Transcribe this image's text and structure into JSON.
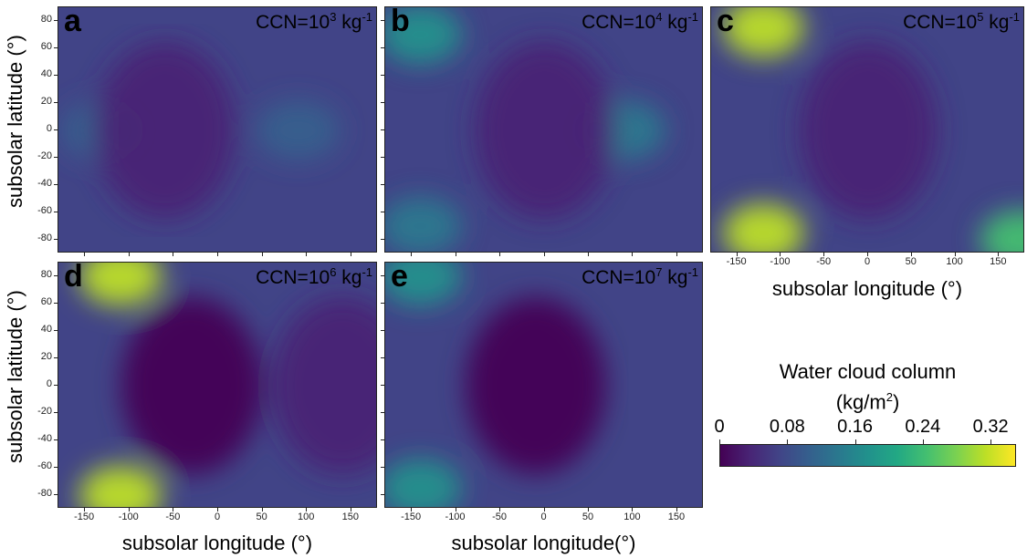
{
  "chart_data": {
    "type": "heatmap",
    "colorbar": {
      "title_line1": "Water cloud column",
      "title_line2_base": "(kg/m",
      "title_line2_sup": "2",
      "title_line2_end": ")",
      "ticks": [
        "0",
        "0.08",
        "0.16",
        "0.24",
        "0.32"
      ],
      "range": [
        0,
        0.35
      ],
      "colormap": "viridis"
    },
    "x_ticks": [
      -150,
      -100,
      -50,
      0,
      50,
      100,
      150
    ],
    "y_ticks": [
      80,
      60,
      40,
      20,
      0,
      -20,
      -40,
      -60,
      -80
    ],
    "xlim": [
      -180,
      180
    ],
    "ylim": [
      -90,
      90
    ],
    "ylabel": "subsolar latitude (°)",
    "panels": [
      {
        "letter": "a",
        "ccn_base": "CCN=10",
        "ccn_exp": "3",
        "ccn_unit": " kg",
        "ccn_unit_exp": "-1",
        "xlabel": "subsolar longitude (°)",
        "blobs": [
          {
            "lon": -130,
            "lat": 0,
            "value": 0.1
          },
          {
            "lon": 90,
            "lat": 0,
            "value": 0.12
          },
          {
            "lon": -60,
            "lat": 0,
            "value": 0.03
          }
        ]
      },
      {
        "letter": "b",
        "ccn_base": "CCN=10",
        "ccn_exp": "4",
        "ccn_unit": " kg",
        "ccn_unit_exp": "-1",
        "xlabel": "",
        "blobs": [
          {
            "lon": -140,
            "lat": 70,
            "value": 0.16
          },
          {
            "lon": -140,
            "lat": -70,
            "value": 0.15
          },
          {
            "lon": 90,
            "lat": 0,
            "value": 0.13
          },
          {
            "lon": 0,
            "lat": 0,
            "value": 0.03
          }
        ]
      },
      {
        "letter": "c",
        "ccn_base": "CCN=10",
        "ccn_exp": "5",
        "ccn_unit": " kg",
        "ccn_unit_exp": "-1",
        "xlabel": "subsolar longitude (°)",
        "blobs": [
          {
            "lon": -120,
            "lat": 75,
            "value": 0.33
          },
          {
            "lon": -120,
            "lat": -75,
            "value": 0.33
          },
          {
            "lon": 175,
            "lat": -80,
            "value": 0.25
          },
          {
            "lon": 0,
            "lat": 0,
            "value": 0.02
          }
        ]
      },
      {
        "letter": "d",
        "ccn_base": "CCN=10",
        "ccn_exp": "6",
        "ccn_unit": " kg",
        "ccn_unit_exp": "-1",
        "xlabel": "subsolar longitude (°)",
        "blobs": [
          {
            "lon": -110,
            "lat": 80,
            "value": 0.33
          },
          {
            "lon": -110,
            "lat": -80,
            "value": 0.33
          },
          {
            "lon": -30,
            "lat": 0,
            "value": 0.01
          },
          {
            "lon": 140,
            "lat": 0,
            "value": 0.02
          }
        ]
      },
      {
        "letter": "e",
        "ccn_base": "CCN=10",
        "ccn_exp": "7",
        "ccn_unit": " kg",
        "ccn_unit_exp": "-1",
        "xlabel": "subsolar longitude(°)",
        "blobs": [
          {
            "lon": -140,
            "lat": 80,
            "value": 0.17
          },
          {
            "lon": -140,
            "lat": -75,
            "value": 0.17
          },
          {
            "lon": -10,
            "lat": 0,
            "value": 0.01
          }
        ]
      }
    ]
  }
}
